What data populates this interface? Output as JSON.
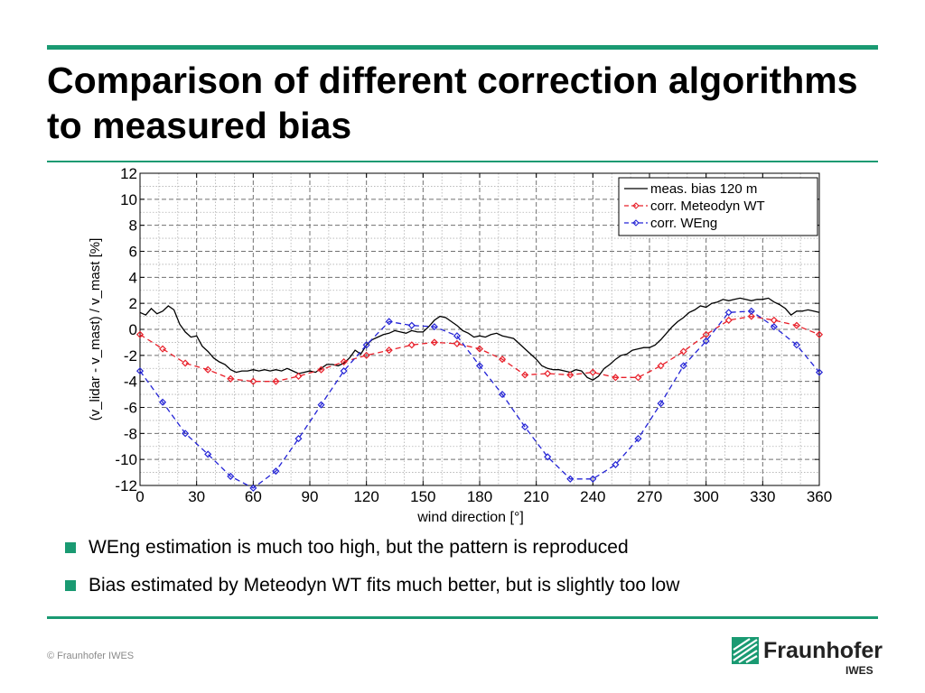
{
  "slide": {
    "title": "Comparison of different correction algorithms to measured bias",
    "bullets": [
      "WEng estimation is much too high, but the pattern is reproduced",
      "Bias estimated by Meteodyn WT fits much better, but is slightly too low"
    ],
    "footer": {
      "copyright": "© Fraunhofer IWES"
    },
    "logo": {
      "name": "Fraunhofer",
      "sub": "IWES",
      "icon": "fraunhofer-logo-mark"
    }
  },
  "colors": {
    "accent": "#1a9a72",
    "measured": "#000000",
    "meteodyn": "#e8202a",
    "weng": "#2424d6"
  },
  "chart_data": {
    "type": "line",
    "title": "",
    "xlabel": "wind direction [°]",
    "ylabel": "(v_lidar - v_mast) / v_mast [%]",
    "xlim": [
      0,
      360
    ],
    "ylim": [
      -12,
      12
    ],
    "xticks": [
      "0",
      "30",
      "60",
      "90",
      "120",
      "150",
      "180",
      "210",
      "240",
      "270",
      "300",
      "330",
      "360"
    ],
    "yticks": [
      "12",
      "10",
      "8",
      "6",
      "4",
      "2",
      "0",
      "-2",
      "-4",
      "-6",
      "-8",
      "-10",
      "-12"
    ],
    "grid": true,
    "legend_position": "top-right",
    "series": [
      {
        "name": "meas. bias 120 m",
        "style": "solid",
        "marker": "none",
        "x": [
          0,
          3,
          6,
          9,
          12,
          15,
          18,
          21,
          24,
          27,
          30,
          33,
          36,
          39,
          42,
          45,
          48,
          51,
          54,
          57,
          60,
          63,
          66,
          69,
          72,
          75,
          78,
          81,
          84,
          87,
          90,
          93,
          96,
          99,
          102,
          105,
          108,
          111,
          114,
          117,
          120,
          123,
          126,
          129,
          132,
          135,
          138,
          141,
          144,
          147,
          150,
          153,
          156,
          159,
          162,
          165,
          168,
          171,
          174,
          177,
          180,
          183,
          186,
          189,
          192,
          195,
          198,
          201,
          204,
          207,
          210,
          213,
          216,
          219,
          222,
          225,
          228,
          231,
          234,
          237,
          240,
          243,
          246,
          249,
          252,
          255,
          258,
          261,
          264,
          267,
          270,
          273,
          276,
          279,
          282,
          285,
          288,
          291,
          294,
          297,
          300,
          303,
          306,
          309,
          312,
          315,
          318,
          321,
          324,
          327,
          330,
          333,
          336,
          339,
          342,
          345,
          348,
          351,
          354,
          357,
          360
        ],
        "values": [
          1.3,
          1.1,
          1.6,
          1.2,
          1.4,
          1.8,
          1.5,
          0.4,
          -0.2,
          -0.6,
          -0.5,
          -1.3,
          -1.7,
          -2.2,
          -2.5,
          -2.7,
          -3.1,
          -3.3,
          -3.2,
          -3.2,
          -3.1,
          -3.2,
          -3.1,
          -3.2,
          -3.1,
          -3.2,
          -3.0,
          -3.2,
          -3.4,
          -3.3,
          -3.2,
          -3.3,
          -3.0,
          -2.7,
          -2.7,
          -2.8,
          -2.6,
          -2.2,
          -1.6,
          -1.9,
          -1.2,
          -0.8,
          -0.6,
          -0.4,
          -0.3,
          -0.1,
          -0.2,
          -0.3,
          -0.1,
          -0.2,
          -0.2,
          0.2,
          0.7,
          1.0,
          0.9,
          0.6,
          0.3,
          -0.1,
          -0.3,
          -0.6,
          -0.5,
          -0.6,
          -0.4,
          -0.3,
          -0.5,
          -0.6,
          -0.7,
          -1.1,
          -1.5,
          -1.9,
          -2.3,
          -2.8,
          -3.0,
          -3.1,
          -3.1,
          -3.2,
          -3.3,
          -3.1,
          -3.2,
          -3.7,
          -3.9,
          -3.6,
          -3.0,
          -2.7,
          -2.3,
          -2.0,
          -1.9,
          -1.6,
          -1.5,
          -1.4,
          -1.4,
          -1.2,
          -0.8,
          -0.3,
          0.2,
          0.6,
          0.9,
          1.3,
          1.5,
          1.8,
          1.7,
          2.0,
          2.1,
          2.3,
          2.2,
          2.3,
          2.4,
          2.3,
          2.2,
          2.3,
          2.3,
          2.4,
          2.1,
          1.9,
          1.6,
          1.1,
          1.4,
          1.4,
          1.5,
          1.4,
          1.3
        ]
      },
      {
        "name": "corr. Meteodyn WT",
        "style": "dashed",
        "marker": "diamond",
        "x": [
          0,
          12,
          24,
          36,
          48,
          60,
          72,
          84,
          96,
          108,
          120,
          132,
          144,
          156,
          168,
          180,
          192,
          204,
          216,
          228,
          240,
          252,
          264,
          276,
          288,
          300,
          312,
          324,
          336,
          348,
          360
        ],
        "values": [
          -0.4,
          -1.5,
          -2.6,
          -3.1,
          -3.8,
          -4.0,
          -4.0,
          -3.6,
          -3.1,
          -2.5,
          -2.0,
          -1.6,
          -1.2,
          -1.0,
          -1.1,
          -1.5,
          -2.3,
          -3.5,
          -3.4,
          -3.5,
          -3.3,
          -3.7,
          -3.7,
          -2.8,
          -1.7,
          -0.4,
          0.7,
          1.0,
          0.7,
          0.3,
          -0.4
        ]
      },
      {
        "name": "corr. WEng",
        "style": "dashed",
        "marker": "diamond",
        "x": [
          0,
          12,
          24,
          36,
          48,
          60,
          72,
          84,
          96,
          108,
          120,
          132,
          144,
          156,
          168,
          180,
          192,
          204,
          216,
          228,
          240,
          252,
          264,
          276,
          288,
          300,
          312,
          324,
          336,
          348,
          360
        ],
        "values": [
          -3.2,
          -5.6,
          -8.0,
          -9.6,
          -11.3,
          -12.2,
          -10.9,
          -8.4,
          -5.8,
          -3.2,
          -1.2,
          0.6,
          0.3,
          0.2,
          -0.5,
          -2.8,
          -5.0,
          -7.5,
          -9.8,
          -11.5,
          -11.5,
          -10.4,
          -8.4,
          -5.7,
          -2.8,
          -0.9,
          1.3,
          1.4,
          0.2,
          -1.2,
          -3.3
        ]
      }
    ]
  }
}
